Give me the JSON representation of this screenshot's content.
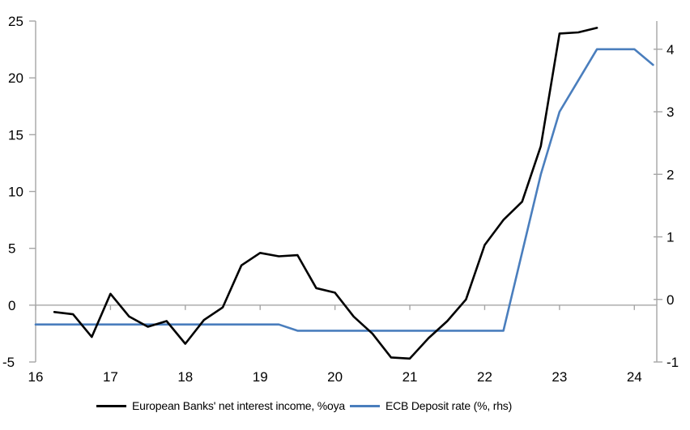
{
  "colors": {
    "background": "#FFFFFF",
    "axis": "#A6A6A6",
    "text": "#000000",
    "series_black": "#000000",
    "series_blue": "#4A7EBD"
  },
  "legend": {
    "items": [
      {
        "label": "European Banks' net interest income, %oya",
        "color": "#000000"
      },
      {
        "label": "ECB Deposit rate (%, rhs)",
        "color": "#4A7EBD"
      }
    ]
  },
  "chart_data": {
    "type": "line",
    "title": "",
    "xlabel": "",
    "ylabel_left": "",
    "ylabel_right": "",
    "grid": "zero-line-only",
    "legend_position": "bottom",
    "x_axis": {
      "min": 16,
      "max": 24.3,
      "ticks": [
        16,
        17,
        18,
        19,
        20,
        21,
        22,
        23,
        24
      ]
    },
    "left_axis": {
      "min": -5,
      "max": 25,
      "ticks": [
        -5,
        0,
        5,
        10,
        15,
        20,
        25
      ]
    },
    "right_axis": {
      "min": -1,
      "max": 4.45,
      "ticks": [
        -1,
        0,
        1,
        2,
        3,
        4
      ]
    },
    "series": [
      {
        "name": "European Banks' net interest income, %oya",
        "axis": "left",
        "color": "#000000",
        "x": [
          16.25,
          16.5,
          16.75,
          17,
          17.25,
          17.5,
          17.75,
          18,
          18.25,
          18.5,
          18.75,
          19,
          19.25,
          19.5,
          19.75,
          20,
          20.25,
          20.5,
          20.75,
          21,
          21.25,
          21.5,
          21.75,
          22,
          22.25,
          22.5,
          22.75,
          23,
          23.25,
          23.5
        ],
        "values": [
          -0.6,
          -0.8,
          -2.8,
          1.0,
          -1.0,
          -1.9,
          -1.4,
          -3.4,
          -1.3,
          -0.2,
          3.5,
          4.6,
          4.3,
          4.4,
          1.5,
          1.1,
          -1.0,
          -2.5,
          -4.6,
          -4.7,
          -2.9,
          -1.4,
          0.5,
          5.3,
          7.5,
          9.1,
          14.0,
          23.9,
          24.0,
          24.4
        ]
      },
      {
        "name": "ECB Deposit rate (%, rhs)",
        "axis": "right",
        "color": "#4A7EBD",
        "x": [
          16,
          16.25,
          16.5,
          16.75,
          17,
          17.25,
          17.5,
          17.75,
          18,
          18.25,
          18.5,
          18.75,
          19,
          19.25,
          19.5,
          19.75,
          20,
          20.25,
          20.5,
          20.75,
          21,
          21.25,
          21.5,
          21.75,
          22,
          22.25,
          22.5,
          22.75,
          23,
          23.25,
          23.5,
          23.75,
          24,
          24.25
        ],
        "values": [
          -0.4,
          -0.4,
          -0.4,
          -0.4,
          -0.4,
          -0.4,
          -0.4,
          -0.4,
          -0.4,
          -0.4,
          -0.4,
          -0.4,
          -0.4,
          -0.4,
          -0.5,
          -0.5,
          -0.5,
          -0.5,
          -0.5,
          -0.5,
          -0.5,
          -0.5,
          -0.5,
          -0.5,
          -0.5,
          -0.5,
          0.75,
          2.0,
          3.0,
          3.5,
          4.0,
          4.0,
          4.0,
          3.75
        ]
      }
    ]
  }
}
